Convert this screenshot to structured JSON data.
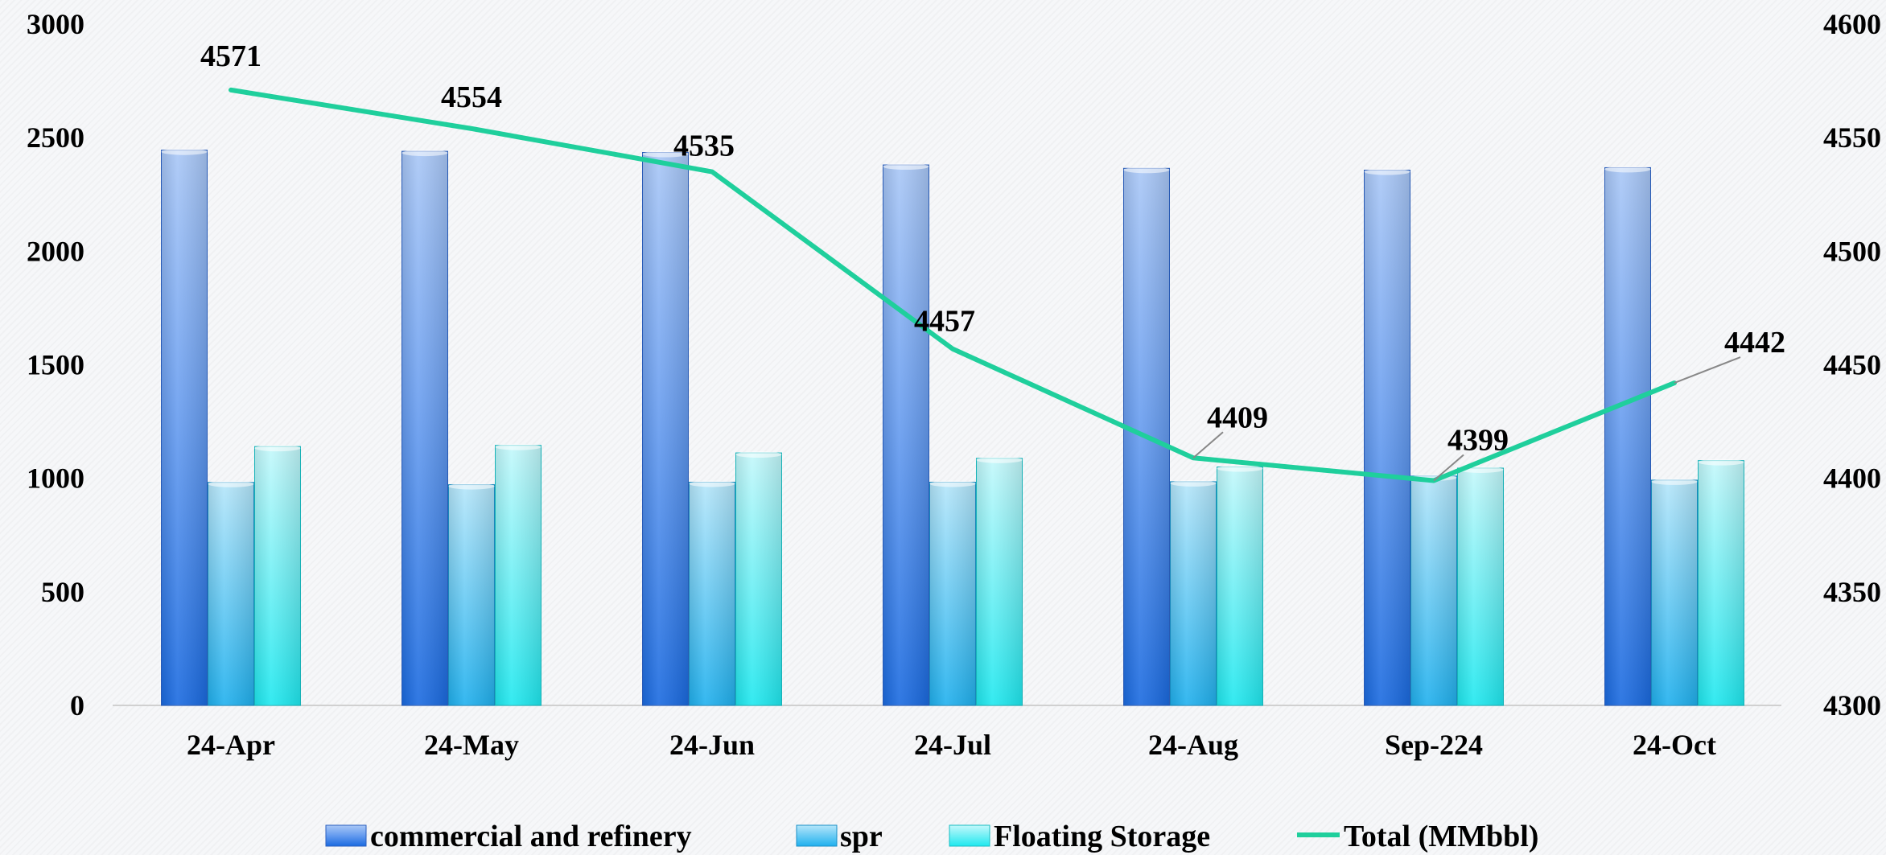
{
  "chart_data": {
    "type": "bar",
    "categories": [
      "24-Apr",
      "24-May",
      "24-Jun",
      "24-Jul",
      "24-Aug",
      "Sep-224",
      "24-Oct"
    ],
    "series": [
      {
        "name": "commercial and refinery",
        "type": "bar",
        "axis": "left",
        "values": [
          2445,
          2440,
          2435,
          2380,
          2365,
          2357,
          2368
        ],
        "color": "#3a7be8"
      },
      {
        "name": "spr",
        "type": "bar",
        "axis": "left",
        "values": [
          982,
          972,
          983,
          983,
          985,
          1010,
          992
        ],
        "color": "#3fb6f0"
      },
      {
        "name": "Floating Storage",
        "type": "bar",
        "axis": "left",
        "values": [
          1140,
          1145,
          1112,
          1088,
          1050,
          1045,
          1078
        ],
        "color": "#35e6ec"
      },
      {
        "name": "Total (MMbbl)",
        "type": "line",
        "axis": "right",
        "values": [
          4571,
          4554,
          4535,
          4457,
          4409,
          4399,
          4442
        ],
        "color": "#1fcf9c"
      }
    ],
    "data_labels": [
      "4571",
      "4554",
      "4535",
      "4457",
      "4409",
      "4399",
      "4442"
    ],
    "y_left": {
      "ylim": [
        0,
        3000
      ],
      "ticks": [
        "0",
        "500",
        "1000",
        "1500",
        "2000",
        "2500",
        "3000"
      ]
    },
    "y_right": {
      "ylim": [
        4300,
        4600
      ],
      "ticks": [
        "4300",
        "4350",
        "4400",
        "4450",
        "4500",
        "4550",
        "4600"
      ]
    },
    "legend_position": "bottom",
    "grid": false
  }
}
